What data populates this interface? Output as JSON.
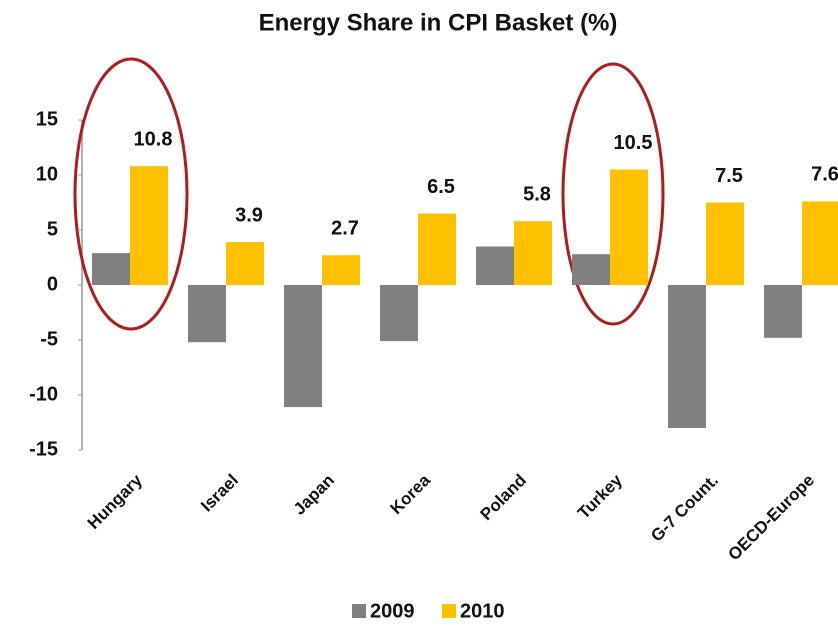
{
  "chart_data": {
    "type": "bar",
    "title": "Energy Share in CPI Basket (%)",
    "categories": [
      "Hungary",
      "Israel",
      "Japan",
      "Korea",
      "Poland",
      "Turkey",
      "G-7 Count.",
      "OECD-Europe"
    ],
    "series": [
      {
        "name": "2009",
        "color": "#808080",
        "values": [
          2.9,
          -5.2,
          -11.1,
          -5.1,
          3.5,
          2.8,
          -13.0,
          -4.8
        ]
      },
      {
        "name": "2010",
        "color": "#ffc000",
        "values": [
          10.8,
          3.9,
          2.7,
          6.5,
          5.8,
          10.5,
          7.5,
          7.6
        ]
      }
    ],
    "ylim": [
      -15,
      15
    ],
    "yticks": [
      -15,
      -10,
      -5,
      0,
      5,
      10,
      15
    ],
    "grid": false,
    "legend": "bottom"
  }
}
